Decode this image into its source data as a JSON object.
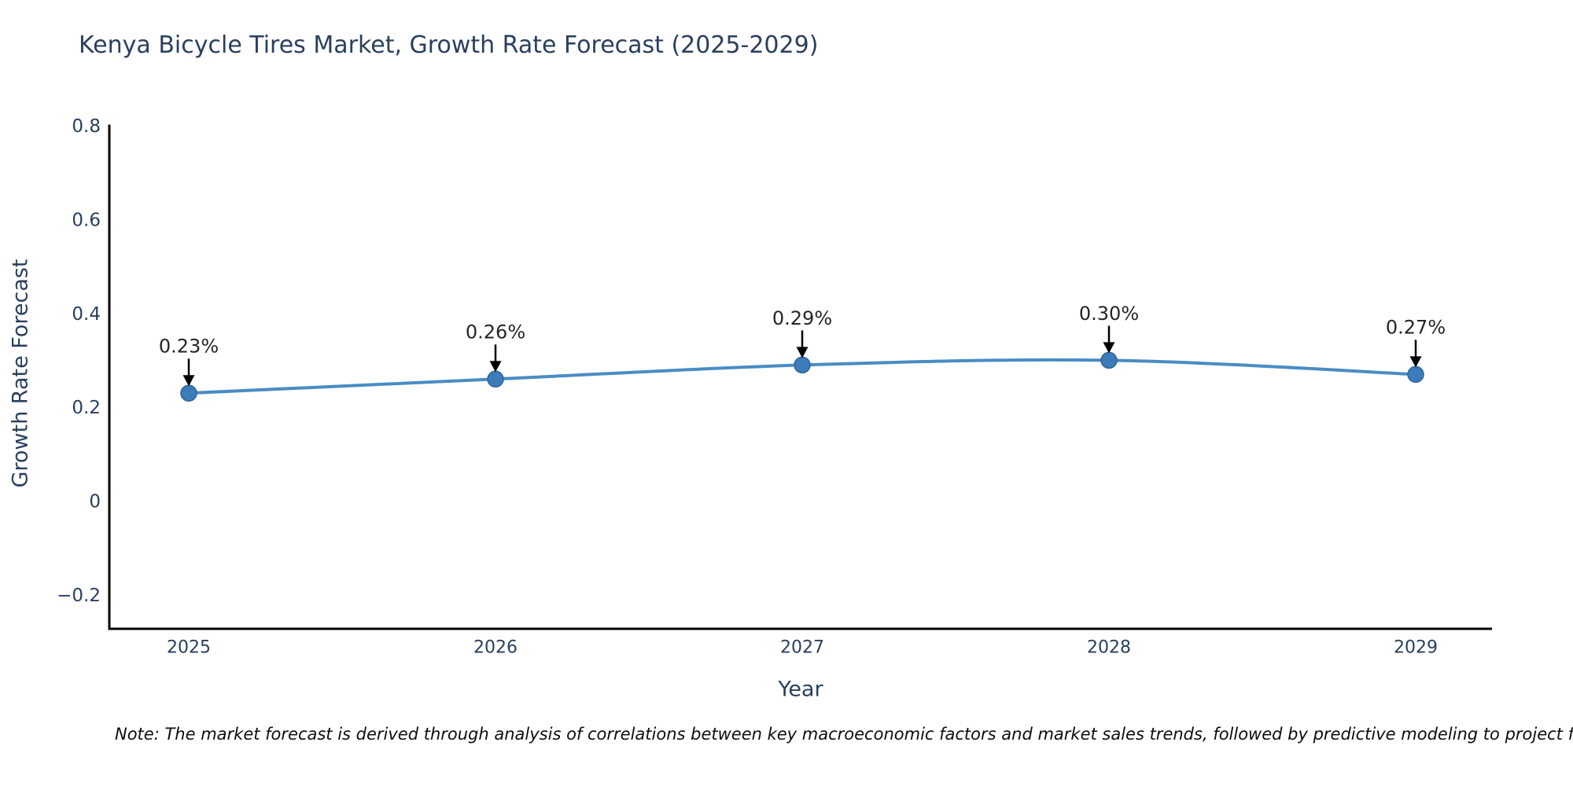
{
  "title": "Kenya Bicycle Tires Market, Growth Rate Forecast (2025-2029)",
  "note": "Note: The market forecast is derived through analysis of correlations between key macroeconomic factors and market sales trends, followed by predictive modeling to project future sales.",
  "chart_data": {
    "type": "line",
    "title": "Kenya Bicycle Tires Market, Growth Rate Forecast (2025-2029)",
    "xlabel": "Year",
    "ylabel": "Growth Rate Forecast",
    "categories": [
      "2025",
      "2026",
      "2027",
      "2028",
      "2029"
    ],
    "series": [
      {
        "name": "Growth Rate Forecast",
        "values": [
          0.23,
          0.26,
          0.29,
          0.3,
          0.27
        ]
      }
    ],
    "point_labels": [
      "0.23%",
      "0.26%",
      "0.29%",
      "0.30%",
      "0.27%"
    ],
    "yticks": [
      -0.2,
      0,
      0.2,
      0.4,
      0.6,
      0.8
    ],
    "ylim": [
      -0.2723,
      0.8
    ],
    "line_shape": "spline",
    "grid": false,
    "legend": "none",
    "colors": {
      "line": "#4a8cc4",
      "marker": "#3d7cba",
      "marker_edge": "#2e649c",
      "arrow": "#000000",
      "axis": "#000000",
      "text": "#2a3f5f",
      "annotation_text": "#262626"
    }
  }
}
